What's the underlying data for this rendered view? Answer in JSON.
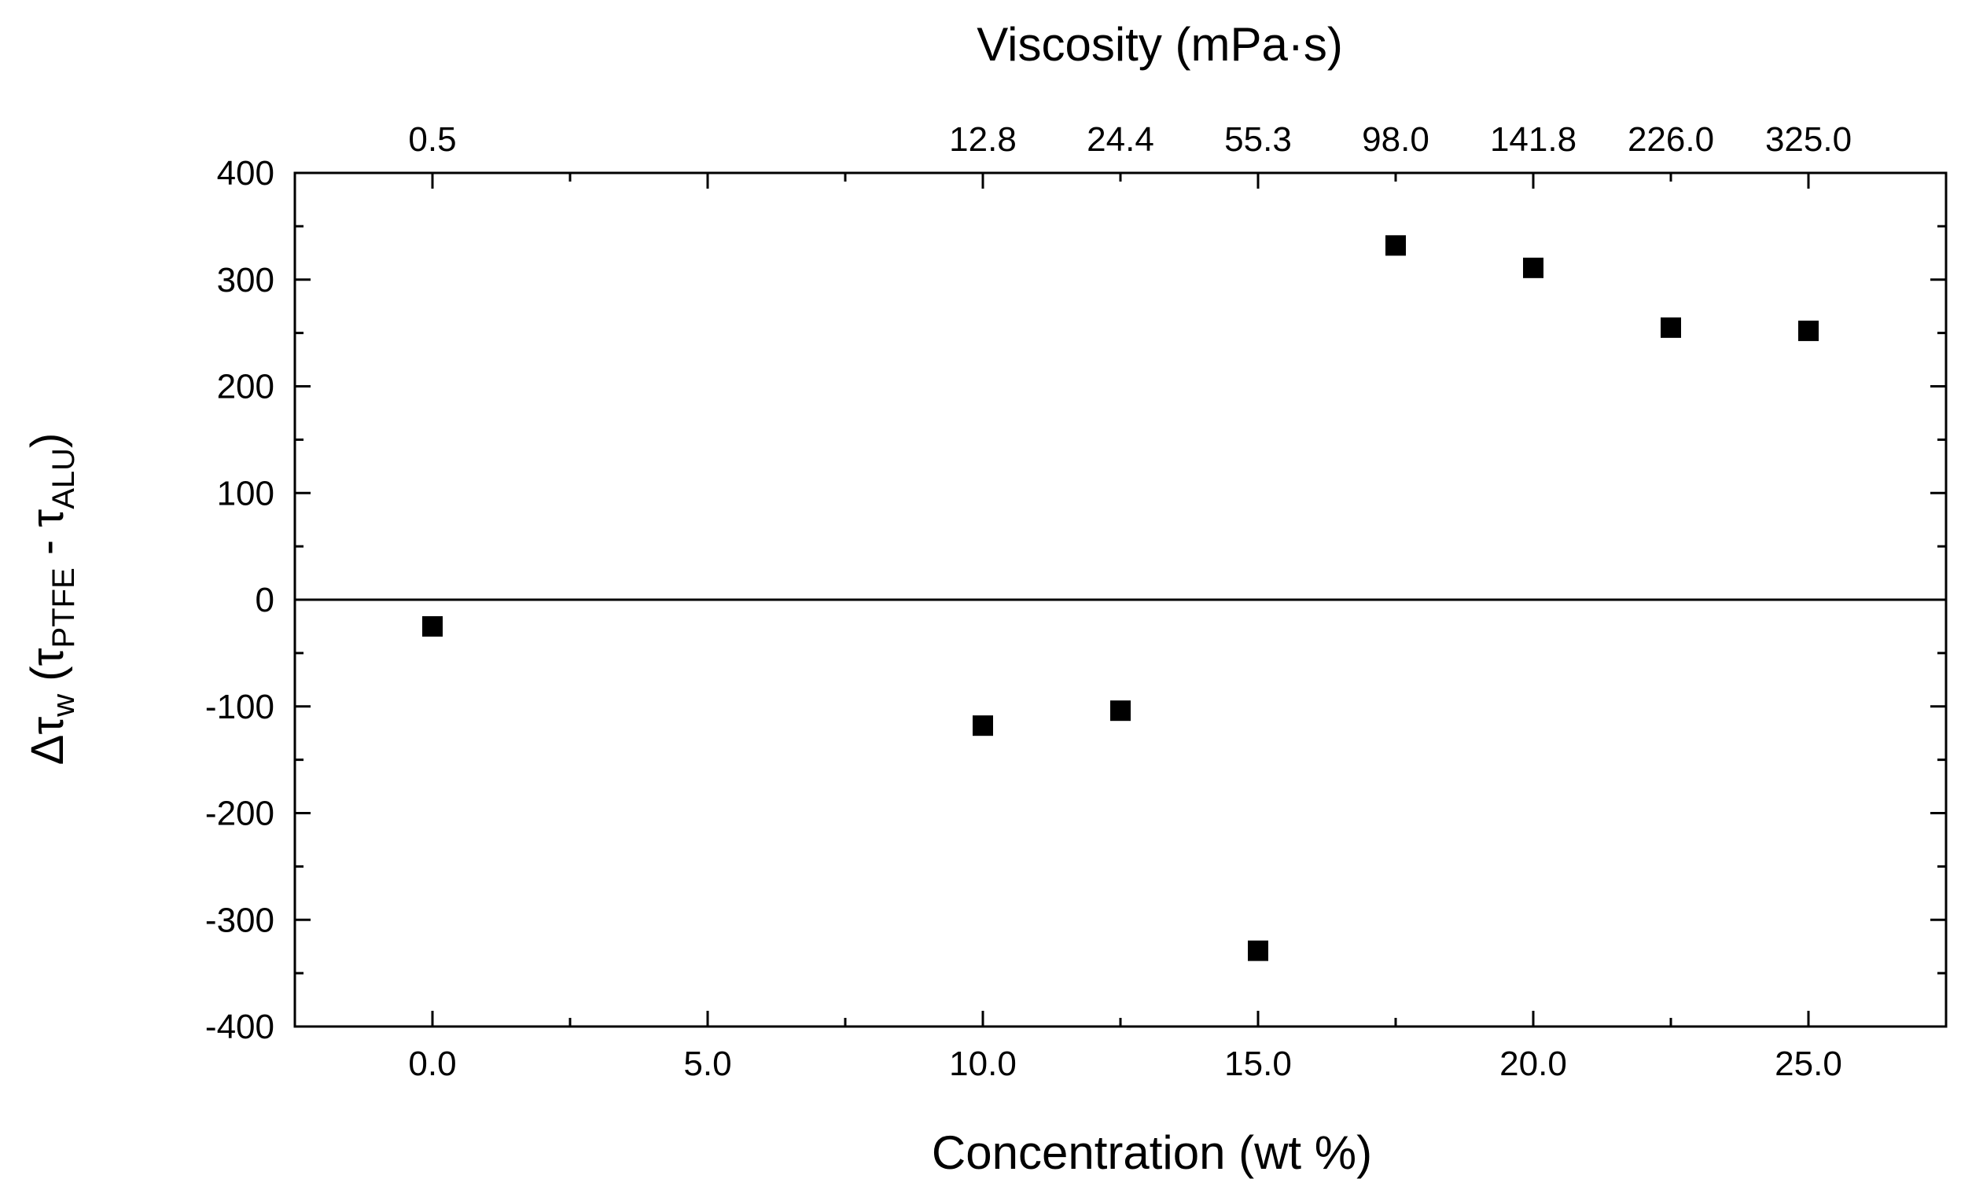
{
  "chart_data": {
    "type": "scatter",
    "title": "",
    "xlabel": "Concentration (wt %)",
    "x2label": "Viscosity (mPa·s)",
    "ylabel": {
      "delta_tau": "Δτ",
      "w": "w",
      "open": " (τ",
      "ptfe": "PTFE",
      "minus": " - τ",
      "alu": "ALU",
      "close": ")"
    },
    "xlim": [
      -2.5,
      27.5
    ],
    "ylim": [
      -400,
      400
    ],
    "x_ticks": [
      {
        "value": 0,
        "label": "0.0"
      },
      {
        "value": 5,
        "label": "5.0"
      },
      {
        "value": 10,
        "label": "10.0"
      },
      {
        "value": 15,
        "label": "15.0"
      },
      {
        "value": 20,
        "label": "20.0"
      },
      {
        "value": 25,
        "label": "25.0"
      }
    ],
    "x_minor_ticks": [
      2.5,
      7.5,
      12.5,
      17.5,
      22.5
    ],
    "y_ticks": [
      {
        "value": 400,
        "label": "400"
      },
      {
        "value": 300,
        "label": "300"
      },
      {
        "value": 200,
        "label": "200"
      },
      {
        "value": 100,
        "label": "100"
      },
      {
        "value": 0,
        "label": "0"
      },
      {
        "value": -100,
        "label": "-100"
      },
      {
        "value": -200,
        "label": "-200"
      },
      {
        "value": -300,
        "label": "-300"
      },
      {
        "value": -400,
        "label": "-400"
      }
    ],
    "y_minor_ticks": [
      350,
      250,
      150,
      50,
      -50,
      -150,
      -250,
      -350
    ],
    "top_ticks": [
      {
        "value": 0,
        "label": "0.5"
      },
      {
        "value": 10,
        "label": "12.8"
      },
      {
        "value": 12.5,
        "label": "24.4"
      },
      {
        "value": 15,
        "label": "55.3"
      },
      {
        "value": 17.5,
        "label": "98.0"
      },
      {
        "value": 20,
        "label": "141.8"
      },
      {
        "value": 22.5,
        "label": "226.0"
      },
      {
        "value": 25,
        "label": "325.0"
      }
    ],
    "reference_line_y": 0,
    "series": [
      {
        "name": "Δτw",
        "marker": "square",
        "color": "#000000",
        "points": [
          {
            "x": 0,
            "y": -25
          },
          {
            "x": 10,
            "y": -118
          },
          {
            "x": 12.5,
            "y": -104
          },
          {
            "x": 15,
            "y": -329
          },
          {
            "x": 17.5,
            "y": 332
          },
          {
            "x": 20,
            "y": 311
          },
          {
            "x": 22.5,
            "y": 255
          },
          {
            "x": 25,
            "y": 252
          }
        ]
      }
    ]
  }
}
